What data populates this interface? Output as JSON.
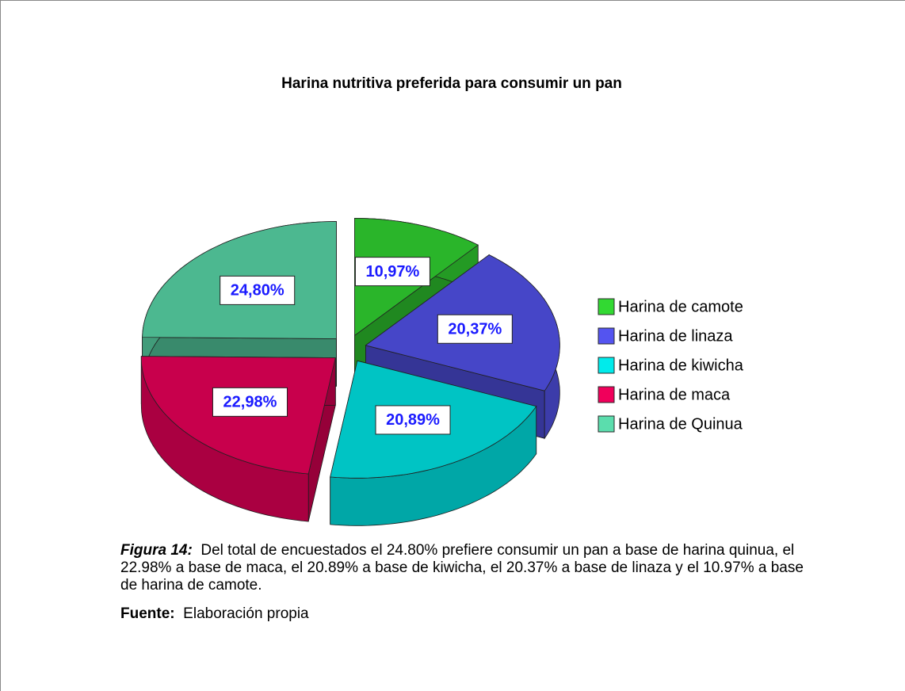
{
  "chart_data": {
    "type": "pie",
    "title": "Harina nutritiva preferida para consumir un pan",
    "categories": [
      "Harina de camote",
      "Harina de linaza",
      "Harina de kiwicha",
      "Harina de maca",
      "Harina de Quinua"
    ],
    "values": [
      10.97,
      20.37,
      20.89,
      22.98,
      24.8
    ],
    "value_labels": [
      "10,97%",
      "20,37%",
      "20,89%",
      "22,98%",
      "24,80%"
    ],
    "colors": [
      "#2ab52a",
      "#4646c8",
      "#00c4c4",
      "#c8004c",
      "#4cb890"
    ],
    "legend": "right"
  },
  "caption": {
    "label": "Figura 14:",
    "text": "Del total de encuestados  el 24.80% prefiere consumir un pan a base de harina quinua, el 22.98% a base de maca, el 20.89% a base de kiwicha, el 20.37% a base de linaza y el 10.97% a base de harina de camote."
  },
  "source": {
    "label": "Fuente:",
    "text": "Elaboración propia"
  }
}
